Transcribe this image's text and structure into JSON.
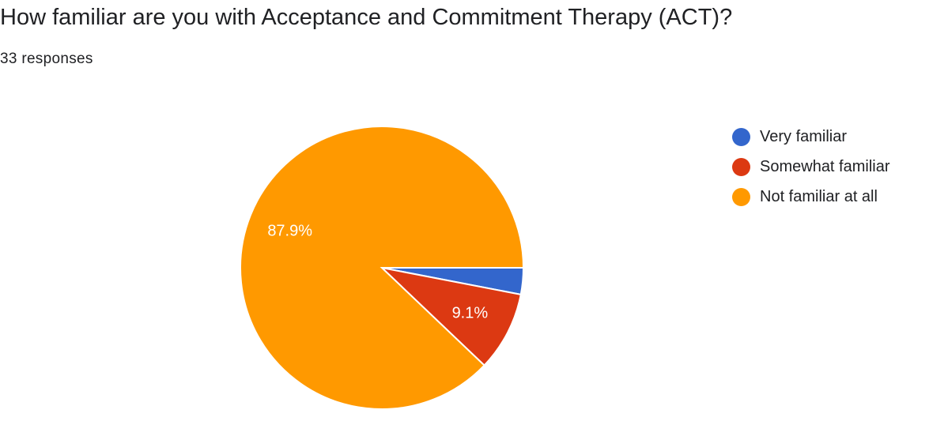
{
  "header": {
    "title": "How familiar are you with Acceptance and Commitment Therapy (ACT)?",
    "responses": "33 responses"
  },
  "chart_data": {
    "type": "pie",
    "title": "How familiar are you with Acceptance and Commitment Therapy (ACT)?",
    "subtitle": "33 responses",
    "legend_position": "right",
    "categories": [
      "Very familiar",
      "Somewhat familiar",
      "Not familiar at all"
    ],
    "counts": [
      1,
      3,
      29
    ],
    "percentages": [
      3.0,
      9.1,
      87.9
    ],
    "data_labels": [
      "",
      "9.1%",
      "87.9%"
    ],
    "colors": [
      "#3366cc",
      "#dc3912",
      "#ff9900"
    ]
  }
}
